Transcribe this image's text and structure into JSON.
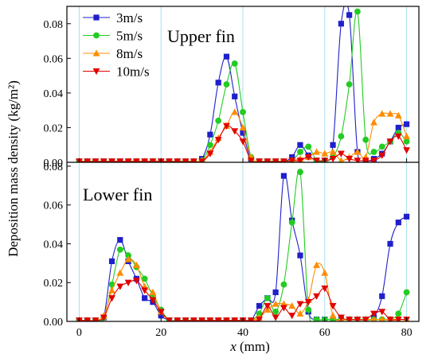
{
  "chart_data": {
    "type": "line",
    "ylabel": "Deposition mass density (kg/m²)",
    "xlabel_var": "x",
    "xlabel_unit": " (mm)",
    "xlim": [
      -3,
      83
    ],
    "xticks": [
      0,
      20,
      40,
      60,
      80
    ],
    "xtick_labels": [
      "0",
      "20",
      "40",
      "60",
      "80"
    ],
    "legend_position": "top-left",
    "grid": "vertical lines at x = 0, 20, 40, 60, 80",
    "legend": [
      {
        "name": "3m/s",
        "color": "#1f1fcc",
        "marker": "square"
      },
      {
        "name": "5m/s",
        "color": "#22cc22",
        "marker": "circle"
      },
      {
        "name": "8m/s",
        "color": "#ff8c00",
        "marker": "triangle-up"
      },
      {
        "name": "10m/s",
        "color": "#e00000",
        "marker": "triangle-down"
      }
    ],
    "panels": [
      {
        "id": "upper",
        "annotation": "Upper fin",
        "ylim": [
          0,
          0.09
        ],
        "yticks": [
          0,
          0.02,
          0.04,
          0.06,
          0.08
        ],
        "ytick_labels": [
          "0.00",
          "0.02",
          "0.04",
          "0.06",
          "0.08"
        ],
        "series": [
          {
            "name": "3m/s",
            "x": [
              0,
              2,
              4,
              6,
              8,
              10,
              12,
              14,
              16,
              18,
              20,
              22,
              24,
              26,
              28,
              30,
              32,
              34,
              36,
              38,
              40,
              42,
              44,
              46,
              48,
              50,
              52,
              54,
              56,
              58,
              60,
              62,
              64,
              66,
              68,
              70,
              72,
              74,
              76,
              78,
              80
            ],
            "y": [
              0.0005,
              0.0005,
              0.0005,
              0.0005,
              0.0005,
              0.0005,
              0.0005,
              0.0005,
              0.0005,
              0.0005,
              0.0005,
              0.0005,
              0.0005,
              0.0005,
              0.0005,
              0.002,
              0.016,
              0.046,
              0.061,
              0.038,
              0.017,
              0.002,
              0.0005,
              0.0005,
              0.0005,
              0.0005,
              0.003,
              0.01,
              0.004,
              0.001,
              0.001,
              0.01,
              0.08,
              0.085,
              0.006,
              0.001,
              0.002,
              0.005,
              0.012,
              0.02,
              0.022
            ]
          },
          {
            "name": "5m/s",
            "x": [
              0,
              2,
              4,
              6,
              8,
              10,
              12,
              14,
              16,
              18,
              20,
              22,
              24,
              26,
              28,
              30,
              32,
              34,
              36,
              38,
              40,
              42,
              44,
              46,
              48,
              50,
              52,
              54,
              56,
              58,
              60,
              62,
              64,
              66,
              68,
              70,
              72,
              74,
              76,
              78,
              80
            ],
            "y": [
              0.0005,
              0.0005,
              0.0005,
              0.0005,
              0.0005,
              0.0005,
              0.0005,
              0.0005,
              0.0005,
              0.0005,
              0.0005,
              0.0005,
              0.0005,
              0.0005,
              0.0005,
              0.001,
              0.01,
              0.024,
              0.045,
              0.057,
              0.029,
              0.003,
              0.0005,
              0.0005,
              0.0005,
              0.0005,
              0.001,
              0.006,
              0.009,
              0.001,
              0.001,
              0.003,
              0.015,
              0.045,
              0.087,
              0.013,
              0.006,
              0.009,
              0.012,
              0.017,
              0.012
            ]
          },
          {
            "name": "8m/s",
            "x": [
              0,
              2,
              4,
              6,
              8,
              10,
              12,
              14,
              16,
              18,
              20,
              22,
              24,
              26,
              28,
              30,
              32,
              34,
              36,
              38,
              40,
              42,
              44,
              46,
              48,
              50,
              52,
              54,
              56,
              58,
              60,
              62,
              64,
              66,
              68,
              70,
              72,
              74,
              76,
              78,
              80
            ],
            "y": [
              0.0005,
              0.0005,
              0.0005,
              0.0005,
              0.0005,
              0.0005,
              0.0005,
              0.0005,
              0.0005,
              0.0005,
              0.0005,
              0.0005,
              0.0005,
              0.0005,
              0.0005,
              0.001,
              0.006,
              0.014,
              0.021,
              0.029,
              0.02,
              0.003,
              0.0005,
              0.0005,
              0.0005,
              0.0005,
              0.001,
              0.002,
              0.003,
              0.006,
              0.005,
              0.006,
              0.001,
              0.003,
              0.006,
              0.003,
              0.023,
              0.028,
              0.028,
              0.027,
              0.015
            ]
          },
          {
            "name": "10m/s",
            "x": [
              0,
              2,
              4,
              6,
              8,
              10,
              12,
              14,
              16,
              18,
              20,
              22,
              24,
              26,
              28,
              30,
              32,
              34,
              36,
              38,
              40,
              42,
              44,
              46,
              48,
              50,
              52,
              54,
              56,
              58,
              60,
              62,
              64,
              66,
              68,
              70,
              72,
              74,
              76,
              78,
              80
            ],
            "y": [
              0.0005,
              0.0005,
              0.0005,
              0.0005,
              0.0005,
              0.0005,
              0.0005,
              0.0005,
              0.0005,
              0.0005,
              0.0005,
              0.0005,
              0.0005,
              0.0005,
              0.0005,
              0.0005,
              0.005,
              0.013,
              0.021,
              0.018,
              0.012,
              0.001,
              0.0005,
              0.0005,
              0.0005,
              0.0005,
              0.001,
              0.001,
              0.003,
              0.001,
              0.001,
              0.002,
              0.005,
              0.002,
              0.001,
              0.001,
              0.001,
              0.004,
              0.012,
              0.015,
              0.007
            ]
          }
        ]
      },
      {
        "id": "lower",
        "annotation": "Lower fin",
        "ylim": [
          0,
          0.082
        ],
        "yticks": [
          0,
          0.02,
          0.04,
          0.06,
          0.08
        ],
        "ytick_labels": [
          "0.00",
          "0.02",
          "0.04",
          "0.06",
          "0.08"
        ],
        "series": [
          {
            "name": "3m/s",
            "x": [
              0,
              2,
              4,
              6,
              8,
              10,
              12,
              14,
              16,
              18,
              20,
              22,
              24,
              26,
              28,
              30,
              32,
              34,
              36,
              38,
              40,
              42,
              44,
              46,
              48,
              50,
              52,
              54,
              56,
              58,
              60,
              62,
              64,
              66,
              68,
              70,
              72,
              74,
              76,
              78,
              80
            ],
            "y": [
              0.0005,
              0.0005,
              0.0005,
              0.002,
              0.031,
              0.042,
              0.031,
              0.022,
              0.012,
              0.01,
              0.003,
              0.0005,
              0.0005,
              0.0005,
              0.0005,
              0.0005,
              0.0005,
              0.0005,
              0.0005,
              0.0005,
              0.0005,
              0.0005,
              0.008,
              0.012,
              0.015,
              0.075,
              0.052,
              0.034,
              0.005,
              0.001,
              0.001,
              0.001,
              0.001,
              0.001,
              0.001,
              0.001,
              0.002,
              0.013,
              0.04,
              0.051,
              0.054
            ]
          },
          {
            "name": "5m/s",
            "x": [
              0,
              2,
              4,
              6,
              8,
              10,
              12,
              14,
              16,
              18,
              20,
              22,
              24,
              26,
              28,
              30,
              32,
              34,
              36,
              38,
              40,
              42,
              44,
              46,
              48,
              50,
              52,
              54,
              56,
              58,
              60,
              62,
              64,
              66,
              68,
              70,
              72,
              74,
              76,
              78,
              80
            ],
            "y": [
              0.0005,
              0.0005,
              0.0005,
              0.002,
              0.019,
              0.037,
              0.034,
              0.028,
              0.022,
              0.013,
              0.006,
              0.0005,
              0.0005,
              0.0005,
              0.0005,
              0.0005,
              0.0005,
              0.0005,
              0.0005,
              0.0005,
              0.0005,
              0.0005,
              0.004,
              0.012,
              0.005,
              0.019,
              0.051,
              0.077,
              0.006,
              0.001,
              0.001,
              0.001,
              0.001,
              0.001,
              0.001,
              0.001,
              0.001,
              0.001,
              0.001,
              0.004,
              0.015
            ]
          },
          {
            "name": "8m/s",
            "x": [
              0,
              2,
              4,
              6,
              8,
              10,
              12,
              14,
              16,
              18,
              20,
              22,
              24,
              26,
              28,
              30,
              32,
              34,
              36,
              38,
              40,
              42,
              44,
              46,
              48,
              50,
              52,
              54,
              56,
              58,
              60,
              62,
              64,
              66,
              68,
              70,
              72,
              74,
              76,
              78,
              80
            ],
            "y": [
              0.0005,
              0.0005,
              0.0005,
              0.003,
              0.016,
              0.025,
              0.032,
              0.029,
              0.018,
              0.015,
              0.005,
              0.0005,
              0.0005,
              0.0005,
              0.0005,
              0.0005,
              0.0005,
              0.0005,
              0.0005,
              0.0005,
              0.0005,
              0.0005,
              0.002,
              0.006,
              0.009,
              0.009,
              0.008,
              0.004,
              0.011,
              0.029,
              0.025,
              0.003,
              0.001,
              0.001,
              0.001,
              0.001,
              0.001,
              0.001,
              0.001,
              0.001,
              0.001
            ]
          },
          {
            "name": "10m/s",
            "x": [
              0,
              2,
              4,
              6,
              8,
              10,
              12,
              14,
              16,
              18,
              20,
              22,
              24,
              26,
              28,
              30,
              32,
              34,
              36,
              38,
              40,
              42,
              44,
              46,
              48,
              50,
              52,
              54,
              56,
              58,
              60,
              62,
              64,
              66,
              68,
              70,
              72,
              74,
              76,
              78,
              80
            ],
            "y": [
              0.0005,
              0.0005,
              0.0005,
              0.002,
              0.012,
              0.018,
              0.02,
              0.021,
              0.016,
              0.011,
              0.005,
              0.0005,
              0.0005,
              0.0005,
              0.0005,
              0.0005,
              0.0005,
              0.0005,
              0.0005,
              0.0005,
              0.0005,
              0.0005,
              0.001,
              0.008,
              0.002,
              0.007,
              0.003,
              0.009,
              0.01,
              0.013,
              0.017,
              0.008,
              0.002,
              0.001,
              0.001,
              0.001,
              0.004,
              0.005,
              0.001,
              0.001,
              0.001
            ]
          }
        ]
      }
    ]
  }
}
